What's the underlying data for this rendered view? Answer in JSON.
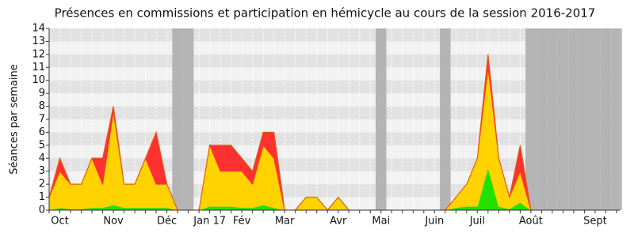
{
  "chart_data": {
    "type": "stacked-area",
    "title": "Présences en commissions et participation en hémicycle au cours de la session 2016-2017",
    "y_label": "Séances par semaine",
    "categories": [
      null,
      "Oct",
      null,
      null,
      null,
      null,
      "Nov",
      null,
      null,
      null,
      null,
      "Déc",
      null,
      null,
      null,
      "Jan 17",
      null,
      null,
      "Fév",
      null,
      null,
      null,
      "Mar",
      null,
      null,
      null,
      null,
      "Avr",
      null,
      null,
      null,
      "Mai",
      null,
      null,
      null,
      null,
      "Juin",
      null,
      null,
      null,
      "Juil",
      null,
      null,
      null,
      null,
      "Août",
      null,
      null,
      null,
      null,
      null,
      "Sept",
      null,
      null
    ],
    "shaded_categories": [
      12,
      13,
      31,
      37,
      45,
      46,
      47,
      48,
      49,
      50,
      51,
      52,
      53
    ],
    "series": [
      {
        "color": "#22e000",
        "values": [
          0,
          0.2,
          0.1,
          0.1,
          0.2,
          0.2,
          0.4,
          0.2,
          0.2,
          0.2,
          0.2,
          0.2,
          0,
          0,
          0,
          0.3,
          0.3,
          0.3,
          0.2,
          0.2,
          0.4,
          0.2,
          0,
          0,
          0,
          0,
          0,
          0,
          0,
          0,
          0,
          0,
          0,
          0,
          0,
          0,
          0,
          0,
          0.2,
          0.3,
          0.3,
          3.3,
          0.3,
          0.1,
          0.6,
          0,
          0,
          0,
          0,
          0,
          0,
          0,
          0,
          0
        ]
      },
      {
        "color": "#ffd200",
        "values": [
          1,
          2.8,
          1.9,
          1.9,
          3.8,
          1.8,
          7.2,
          1.8,
          1.8,
          3.8,
          1.8,
          1.8,
          0,
          0,
          0,
          4.7,
          2.7,
          2.7,
          2.8,
          1.8,
          4.6,
          3.8,
          0,
          0,
          1,
          1,
          0,
          1,
          0,
          0,
          0,
          0,
          0,
          0,
          0,
          0,
          0,
          0,
          0.8,
          1.7,
          3.7,
          7.7,
          3.7,
          0.9,
          2.4,
          0,
          0,
          0,
          0,
          0,
          0,
          0,
          0,
          0
        ]
      },
      {
        "color": "#ff3030",
        "values": [
          0,
          1,
          0,
          0,
          0,
          2,
          0.4,
          0,
          0,
          0,
          4,
          0,
          0,
          0,
          0,
          0,
          2,
          2,
          1,
          1,
          1,
          2,
          0,
          0,
          0,
          0,
          0,
          0,
          0,
          0,
          0,
          0,
          0,
          0,
          0,
          0,
          0,
          0,
          0,
          0,
          0,
          1,
          0,
          0,
          2,
          0,
          0,
          0,
          0,
          0,
          0,
          0,
          0,
          0
        ]
      }
    ],
    "ylim": [
      0,
      14
    ],
    "yticks": [
      0,
      1,
      2,
      3,
      4,
      5,
      6,
      7,
      8,
      9,
      10,
      11,
      12,
      13,
      14
    ],
    "grid": true
  }
}
